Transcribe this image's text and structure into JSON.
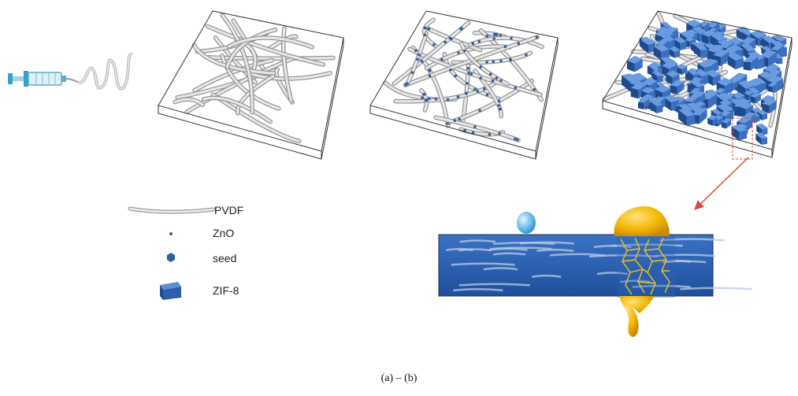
{
  "legend": {
    "items": [
      {
        "label": "PVDF",
        "icon": "fiber-icon"
      },
      {
        "label": "ZnO",
        "icon": "dot-icon"
      },
      {
        "label": "seed",
        "icon": "hexagon-icon"
      },
      {
        "label": "ZIF-8",
        "icon": "cube-icon"
      }
    ]
  },
  "caption": "(a)  –  (b)",
  "colors": {
    "fiber": "#d9d9d9",
    "fiber_edge": "#9a9a9a",
    "zno": "#2e5f9e",
    "zif8": "#3f77c2",
    "zif8_dark": "#1f4a8c",
    "membrane": "#2f64b4",
    "water_drop": "#7cc6f0",
    "oil_drop": "#f2b705",
    "arrow": "#e0453a",
    "box_edge": "#333333"
  }
}
